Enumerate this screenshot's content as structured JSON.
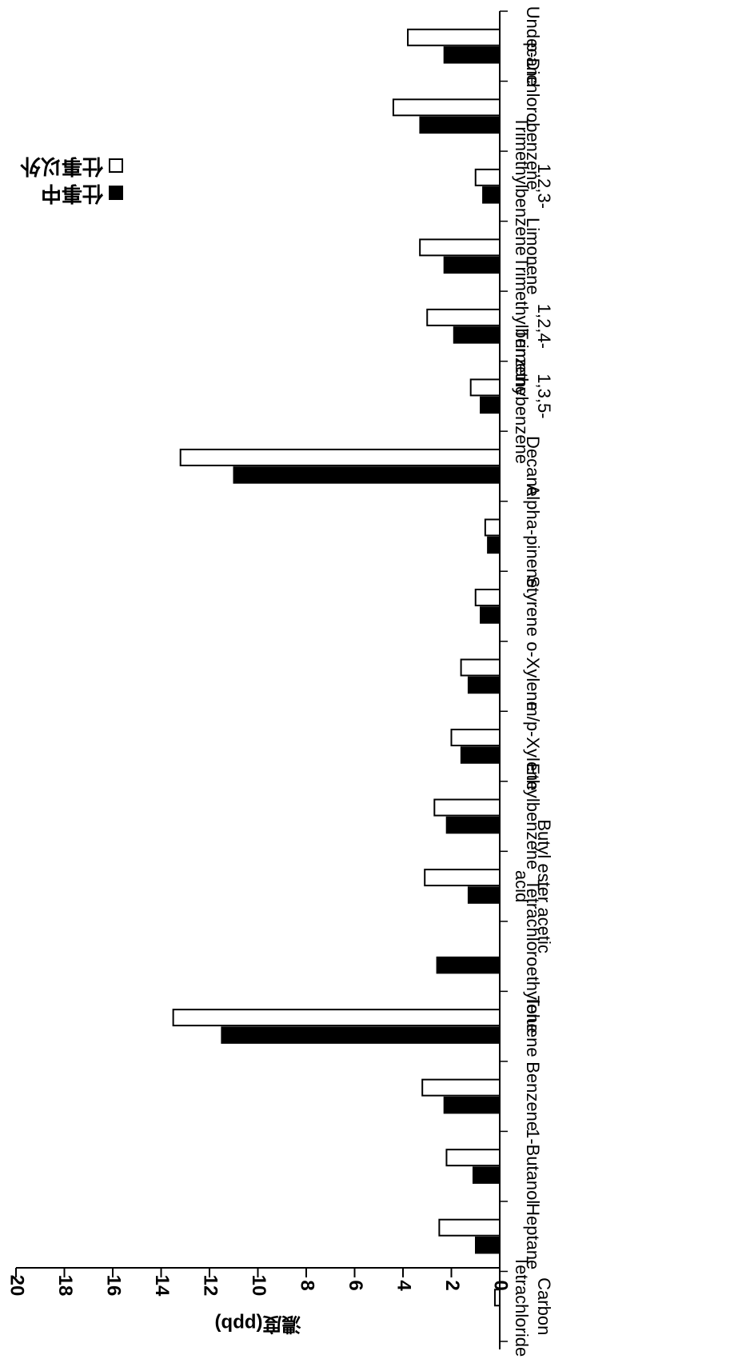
{
  "chart_data": {
    "type": "bar",
    "orientation": "horizontal, rotated 180 degrees (upside-down)",
    "ylabel": "濃度(ppb)",
    "ylim": [
      0,
      20
    ],
    "yticks": [
      0,
      2,
      4,
      6,
      8,
      10,
      12,
      14,
      16,
      18,
      20
    ],
    "grid": false,
    "legend_position": "top-left (rotated)",
    "categories": [
      "Carbon Tetrachloride",
      "Heptane",
      "1-Butanol",
      "Benzene",
      "Toluene",
      "Tetrachloroethylene",
      "Butyl ester acetic acid",
      "Ethylbenzene",
      "m/p-Xylene",
      "o-Xylene",
      "Styrene",
      "Alpha-pinene",
      "Decane",
      "1,3,5-Trimethybenzene",
      "1,2,4-Trimethylbenzene",
      "Limonene",
      "1,2,3-Trimethylbenzene",
      "p-Dichlorobenzene",
      "Undecane"
    ],
    "category_lines": [
      [
        "Carbon",
        "Tetrachloride"
      ],
      [
        "Heptane"
      ],
      [
        "1-Butanol"
      ],
      [
        "Benzene"
      ],
      [
        "Toluene"
      ],
      [
        "Tetrachloroethylene"
      ],
      [
        "Butyl ester acetic",
        "acid"
      ],
      [
        "Ethylbenzene"
      ],
      [
        "m/p-Xylene"
      ],
      [
        "o-Xylene"
      ],
      [
        "Styrene"
      ],
      [
        "Alpha-pinene"
      ],
      [
        "Decane"
      ],
      [
        "1,3,5-",
        "Trimethybenzene"
      ],
      [
        "1,2,4-",
        "Trimethylbenzene"
      ],
      [
        "Limonene"
      ],
      [
        "1,2,3-",
        "Trimethylbenzene"
      ],
      [
        "p-Dichlorobenzene"
      ],
      [
        "Undecane"
      ]
    ],
    "series": [
      {
        "name": "仕事中",
        "color": "#000000",
        "values": [
          0.0,
          1.0,
          1.1,
          2.3,
          11.5,
          2.6,
          1.3,
          2.2,
          1.6,
          1.3,
          0.8,
          0.5,
          11.0,
          0.8,
          1.9,
          2.3,
          0.7,
          3.3,
          2.3
        ]
      },
      {
        "name": "仕事以外",
        "color": "#ffffff",
        "values": [
          0.2,
          2.5,
          2.2,
          3.2,
          13.5,
          0.0,
          3.1,
          2.7,
          2.0,
          1.6,
          1.0,
          0.6,
          13.2,
          1.2,
          3.0,
          3.3,
          1.0,
          4.4,
          3.8
        ]
      }
    ]
  }
}
